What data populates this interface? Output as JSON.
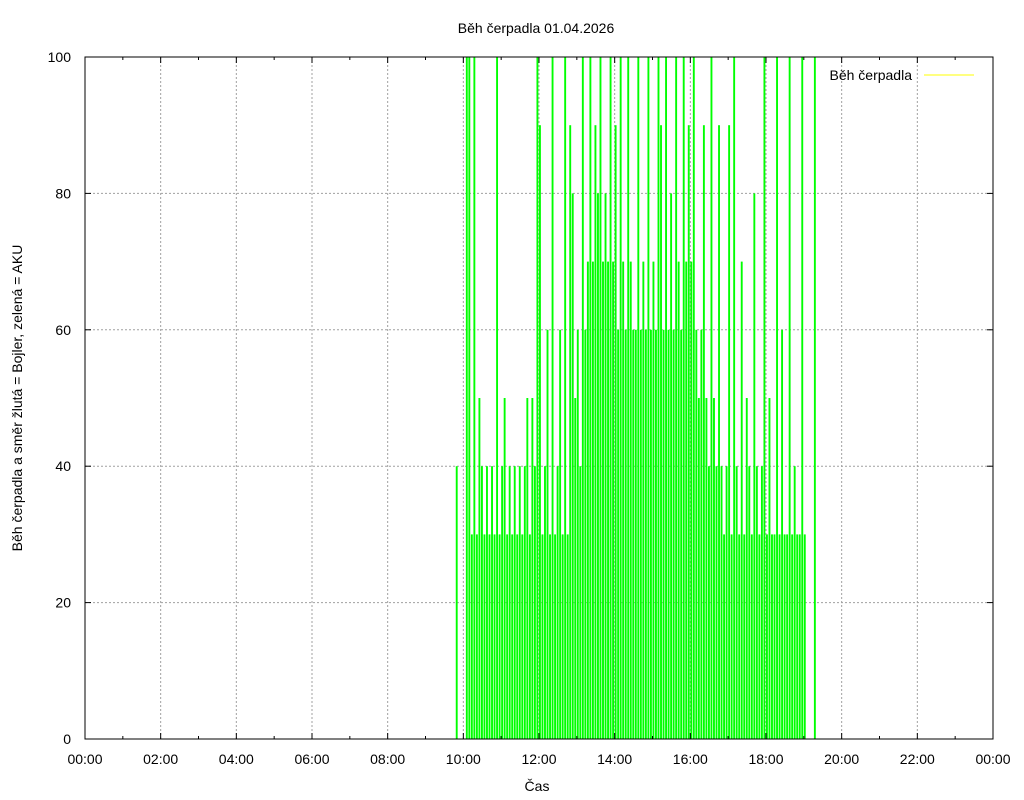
{
  "chart_data": {
    "type": "bar",
    "title": "Běh čerpadla 01.04.2026",
    "xlabel": "Čas",
    "ylabel": "Běh čerpadla a směr žlutá = Bojler, zelená = AKU",
    "xlim": [
      "00:00",
      "24:00"
    ],
    "ylim": [
      0,
      100
    ],
    "x_ticks": [
      "00:00",
      "02:00",
      "04:00",
      "06:00",
      "08:00",
      "10:00",
      "12:00",
      "14:00",
      "16:00",
      "18:00",
      "20:00",
      "22:00",
      "00:00"
    ],
    "y_ticks": [
      0,
      20,
      40,
      60,
      80,
      100
    ],
    "grid": true,
    "legend": {
      "position": "top-right",
      "entries": [
        {
          "name": "Běh čerpadla",
          "color": "#ffff00"
        }
      ]
    },
    "series": [
      {
        "name": "zelená = AKU",
        "color": "#00ff00",
        "x_unit": "time of day",
        "points": [
          [
            "09:48",
            40
          ],
          [
            "10:04",
            100
          ],
          [
            "10:08",
            100
          ],
          [
            "10:12",
            30
          ],
          [
            "10:16",
            100
          ],
          [
            "10:20",
            30
          ],
          [
            "10:24",
            50
          ],
          [
            "10:28",
            40
          ],
          [
            "10:32",
            30
          ],
          [
            "10:36",
            40
          ],
          [
            "10:40",
            30
          ],
          [
            "10:44",
            40
          ],
          [
            "10:48",
            30
          ],
          [
            "10:52",
            100
          ],
          [
            "10:56",
            30
          ],
          [
            "11:00",
            40
          ],
          [
            "11:04",
            50
          ],
          [
            "11:08",
            30
          ],
          [
            "11:12",
            40
          ],
          [
            "11:16",
            30
          ],
          [
            "11:20",
            40
          ],
          [
            "11:24",
            30
          ],
          [
            "11:28",
            40
          ],
          [
            "11:32",
            30
          ],
          [
            "11:36",
            40
          ],
          [
            "11:40",
            50
          ],
          [
            "11:44",
            30
          ],
          [
            "11:48",
            50
          ],
          [
            "11:52",
            40
          ],
          [
            "11:56",
            100
          ],
          [
            "12:00",
            90
          ],
          [
            "12:04",
            30
          ],
          [
            "12:08",
            40
          ],
          [
            "12:12",
            60
          ],
          [
            "12:16",
            30
          ],
          [
            "12:20",
            100
          ],
          [
            "12:24",
            30
          ],
          [
            "12:28",
            40
          ],
          [
            "12:32",
            60
          ],
          [
            "12:36",
            30
          ],
          [
            "12:40",
            100
          ],
          [
            "12:44",
            30
          ],
          [
            "12:48",
            90
          ],
          [
            "12:52",
            80
          ],
          [
            "12:56",
            50
          ],
          [
            "13:00",
            60
          ],
          [
            "13:04",
            40
          ],
          [
            "13:08",
            100
          ],
          [
            "13:12",
            60
          ],
          [
            "13:16",
            70
          ],
          [
            "13:20",
            100
          ],
          [
            "13:24",
            70
          ],
          [
            "13:28",
            90
          ],
          [
            "13:32",
            80
          ],
          [
            "13:36",
            100
          ],
          [
            "13:40",
            70
          ],
          [
            "13:44",
            80
          ],
          [
            "13:48",
            70
          ],
          [
            "13:52",
            100
          ],
          [
            "13:56",
            70
          ],
          [
            "14:00",
            90
          ],
          [
            "14:04",
            60
          ],
          [
            "14:08",
            100
          ],
          [
            "14:12",
            70
          ],
          [
            "14:16",
            60
          ],
          [
            "14:20",
            100
          ],
          [
            "14:24",
            70
          ],
          [
            "14:28",
            60
          ],
          [
            "14:32",
            60
          ],
          [
            "14:36",
            100
          ],
          [
            "14:40",
            60
          ],
          [
            "14:44",
            70
          ],
          [
            "14:48",
            60
          ],
          [
            "14:52",
            100
          ],
          [
            "14:56",
            60
          ],
          [
            "15:00",
            70
          ],
          [
            "15:04",
            60
          ],
          [
            "15:08",
            100
          ],
          [
            "15:12",
            90
          ],
          [
            "15:16",
            60
          ],
          [
            "15:20",
            100
          ],
          [
            "15:24",
            60
          ],
          [
            "15:28",
            80
          ],
          [
            "15:32",
            60
          ],
          [
            "15:36",
            100
          ],
          [
            "15:40",
            70
          ],
          [
            "15:44",
            60
          ],
          [
            "15:48",
            100
          ],
          [
            "15:52",
            70
          ],
          [
            "15:56",
            90
          ],
          [
            "16:00",
            70
          ],
          [
            "16:04",
            100
          ],
          [
            "16:08",
            60
          ],
          [
            "16:12",
            50
          ],
          [
            "16:16",
            60
          ],
          [
            "16:20",
            90
          ],
          [
            "16:24",
            50
          ],
          [
            "16:28",
            40
          ],
          [
            "16:32",
            100
          ],
          [
            "16:36",
            50
          ],
          [
            "16:40",
            40
          ],
          [
            "16:44",
            90
          ],
          [
            "16:48",
            40
          ],
          [
            "16:52",
            30
          ],
          [
            "16:56",
            40
          ],
          [
            "17:00",
            90
          ],
          [
            "17:04",
            30
          ],
          [
            "17:08",
            100
          ],
          [
            "17:12",
            40
          ],
          [
            "17:16",
            30
          ],
          [
            "17:20",
            70
          ],
          [
            "17:24",
            30
          ],
          [
            "17:28",
            50
          ],
          [
            "17:32",
            40
          ],
          [
            "17:36",
            30
          ],
          [
            "17:40",
            80
          ],
          [
            "17:44",
            40
          ],
          [
            "17:48",
            30
          ],
          [
            "17:52",
            40
          ],
          [
            "17:56",
            100
          ],
          [
            "18:00",
            30
          ],
          [
            "18:04",
            50
          ],
          [
            "18:08",
            30
          ],
          [
            "18:12",
            30
          ],
          [
            "18:16",
            100
          ],
          [
            "18:20",
            30
          ],
          [
            "18:24",
            60
          ],
          [
            "18:28",
            30
          ],
          [
            "18:32",
            30
          ],
          [
            "18:36",
            100
          ],
          [
            "18:40",
            30
          ],
          [
            "18:44",
            40
          ],
          [
            "18:48",
            30
          ],
          [
            "18:52",
            30
          ],
          [
            "18:56",
            100
          ],
          [
            "19:00",
            30
          ],
          [
            "19:16",
            100
          ]
        ]
      }
    ]
  }
}
